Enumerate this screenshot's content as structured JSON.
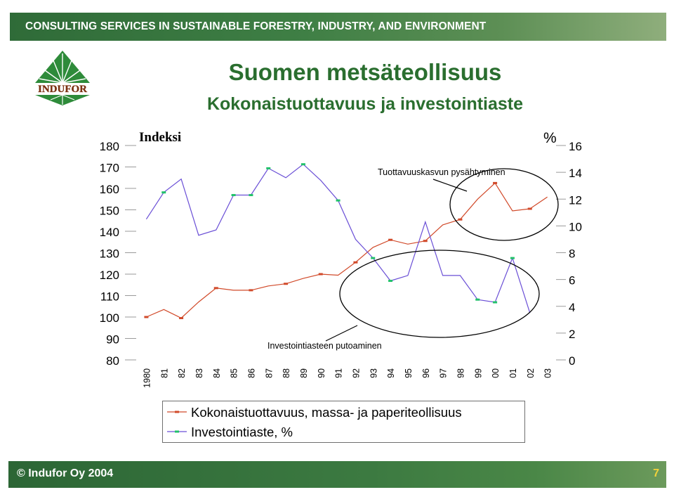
{
  "header": {
    "banner_text": "CONSULTING SERVICES IN SUSTAINABLE FORESTRY, INDUSTRY, AND ENVIRONMENT"
  },
  "logo": {
    "text": "INDUFOR"
  },
  "title": "Suomen metsäteollisuus",
  "subtitle": "Kokonaistuottavuus ja investointiaste",
  "chart_data": {
    "type": "line",
    "categories": [
      "1980",
      "81",
      "82",
      "83",
      "84",
      "85",
      "86",
      "87",
      "88",
      "89",
      "90",
      "91",
      "92",
      "93",
      "94",
      "95",
      "96",
      "97",
      "98",
      "99",
      "00",
      "01",
      "02",
      "03"
    ],
    "left_axis": {
      "label": "Indeksi",
      "ylim": [
        80,
        180
      ],
      "ticks": [
        80,
        90,
        100,
        110,
        120,
        130,
        140,
        150,
        160,
        170,
        180
      ]
    },
    "right_axis": {
      "label": "%",
      "ylim": [
        0,
        16
      ],
      "ticks": [
        0,
        2,
        4,
        6,
        8,
        10,
        12,
        14,
        16
      ]
    },
    "series": [
      {
        "name": "Kokonaistuottavuus, massa- ja paperiteollisuus",
        "axis": "left",
        "color": "#d14a2a",
        "values": [
          100,
          103.5,
          99.5,
          107,
          113.5,
          112.5,
          112.5,
          114.5,
          115.5,
          118,
          120,
          119.5,
          125.5,
          132.5,
          136,
          134,
          135.5,
          143,
          145.5,
          155,
          162.5,
          149.5,
          150.5,
          156
        ]
      },
      {
        "name": "Investointiaste, %",
        "axis": "right",
        "color": "#6a4fd6",
        "values": [
          10.5,
          12.5,
          13.5,
          9.3,
          9.7,
          12.3,
          12.3,
          14.3,
          13.6,
          14.6,
          13.4,
          11.9,
          9.0,
          7.6,
          5.9,
          6.3,
          10.3,
          6.3,
          6.3,
          4.5,
          4.3,
          7.6,
          3.5,
          null
        ]
      }
    ],
    "annotations": [
      {
        "text": "Tuottavuuskasvun pysähtyminen"
      },
      {
        "text": "Investointiasteen putoaminen"
      }
    ],
    "legend": "bottom"
  },
  "footer": {
    "copyright": "© Indufor Oy 2004",
    "page_number": "7"
  }
}
